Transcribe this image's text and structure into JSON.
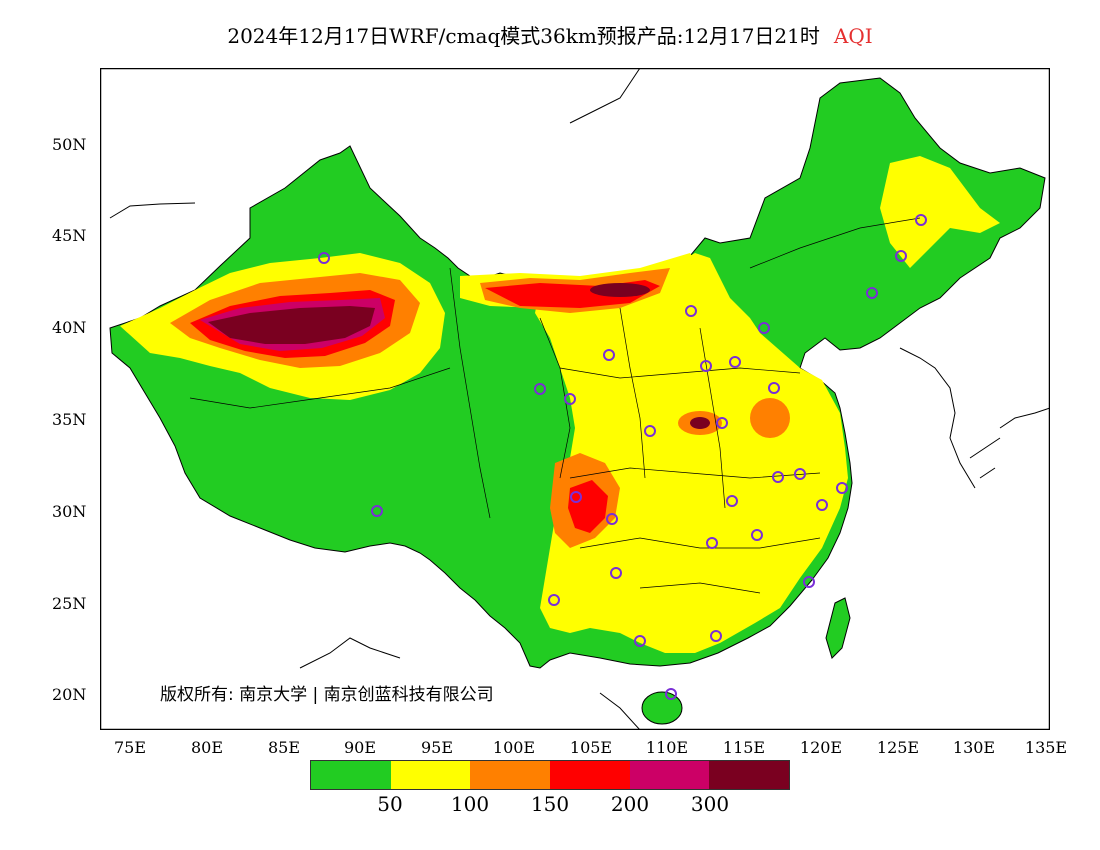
{
  "title": {
    "main": "2024年12月17日WRF/cmaq模式36km预报产品:12月17日21时",
    "variable": "AQI",
    "variable_color": "#e53030"
  },
  "axes": {
    "lat_labels": [
      "50N",
      "45N",
      "40N",
      "35N",
      "30N",
      "25N",
      "20N"
    ],
    "lon_labels": [
      "75E",
      "80E",
      "85E",
      "90E",
      "95E",
      "100E",
      "105E",
      "110E",
      "115E",
      "120E",
      "125E",
      "130E",
      "135E"
    ]
  },
  "copyright": "版权所有: 南京大学 | 南京创蓝科技有限公司",
  "legend": {
    "colors": [
      "#22cc22",
      "#ffff00",
      "#ff8000",
      "#ff0000",
      "#cc0066",
      "#7a0020"
    ],
    "labels": [
      "50",
      "100",
      "150",
      "200",
      "300"
    ]
  },
  "map": {
    "ocean_color": "#ffffff",
    "border_color": "#000000",
    "station_marker_color": "#7a2fd6"
  }
}
